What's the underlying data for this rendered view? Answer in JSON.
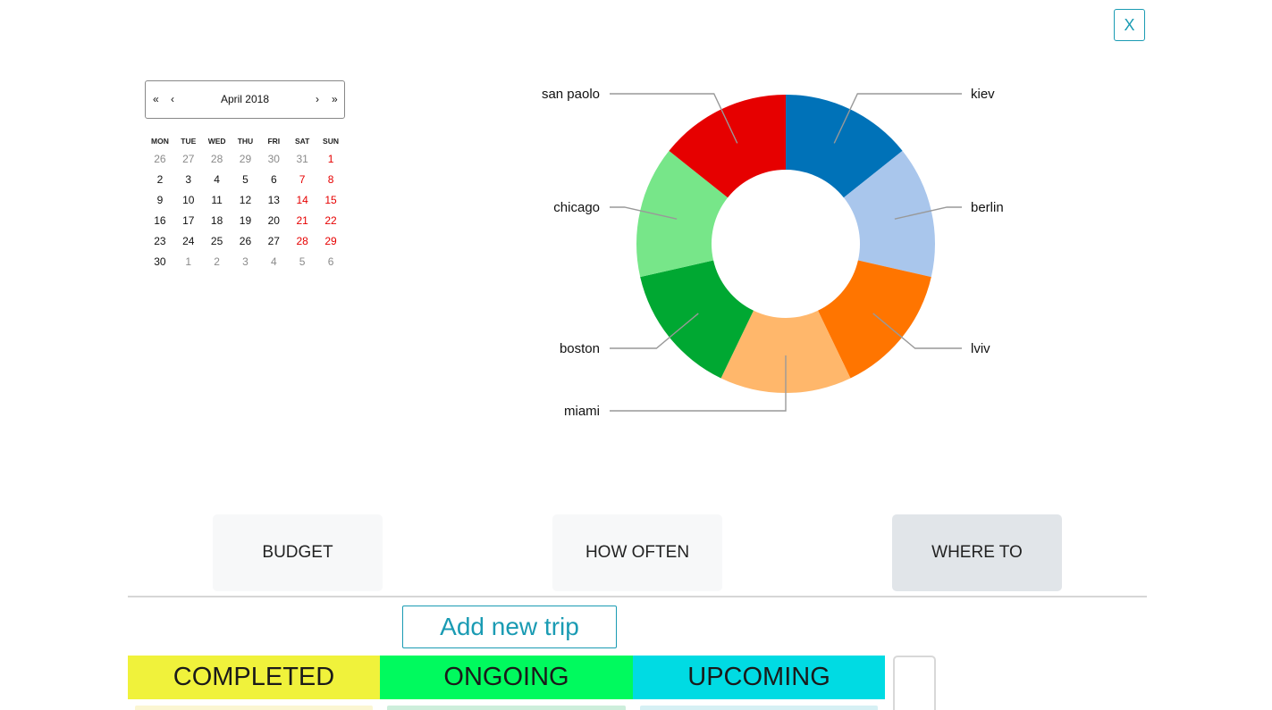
{
  "close_button": {
    "label": "X"
  },
  "calendar": {
    "nav": {
      "first": "«",
      "prev": "‹",
      "month_label": "April 2018",
      "next": "›",
      "last": "»"
    },
    "weekdays": [
      "MON",
      "TUE",
      "WED",
      "THU",
      "FRI",
      "SAT",
      "SUN"
    ],
    "weeks": [
      [
        {
          "d": "26",
          "t": "other"
        },
        {
          "d": "27",
          "t": "other"
        },
        {
          "d": "28",
          "t": "other"
        },
        {
          "d": "29",
          "t": "other"
        },
        {
          "d": "30",
          "t": "other"
        },
        {
          "d": "31",
          "t": "other"
        },
        {
          "d": "1",
          "t": "weekend"
        }
      ],
      [
        {
          "d": "2",
          "t": "normal"
        },
        {
          "d": "3",
          "t": "normal"
        },
        {
          "d": "4",
          "t": "normal"
        },
        {
          "d": "5",
          "t": "normal"
        },
        {
          "d": "6",
          "t": "normal"
        },
        {
          "d": "7",
          "t": "weekend"
        },
        {
          "d": "8",
          "t": "weekend"
        }
      ],
      [
        {
          "d": "9",
          "t": "normal"
        },
        {
          "d": "10",
          "t": "normal"
        },
        {
          "d": "11",
          "t": "normal"
        },
        {
          "d": "12",
          "t": "normal"
        },
        {
          "d": "13",
          "t": "normal"
        },
        {
          "d": "14",
          "t": "weekend"
        },
        {
          "d": "15",
          "t": "weekend"
        }
      ],
      [
        {
          "d": "16",
          "t": "normal"
        },
        {
          "d": "17",
          "t": "normal"
        },
        {
          "d": "18",
          "t": "normal"
        },
        {
          "d": "19",
          "t": "normal"
        },
        {
          "d": "20",
          "t": "normal"
        },
        {
          "d": "21",
          "t": "weekend"
        },
        {
          "d": "22",
          "t": "weekend"
        }
      ],
      [
        {
          "d": "23",
          "t": "normal"
        },
        {
          "d": "24",
          "t": "normal"
        },
        {
          "d": "25",
          "t": "normal"
        },
        {
          "d": "26",
          "t": "normal"
        },
        {
          "d": "27",
          "t": "normal"
        },
        {
          "d": "28",
          "t": "weekend"
        },
        {
          "d": "29",
          "t": "weekend"
        }
      ],
      [
        {
          "d": "30",
          "t": "normal"
        },
        {
          "d": "1",
          "t": "other"
        },
        {
          "d": "2",
          "t": "other"
        },
        {
          "d": "3",
          "t": "other"
        },
        {
          "d": "4",
          "t": "other"
        },
        {
          "d": "5",
          "t": "other"
        },
        {
          "d": "6",
          "t": "other"
        }
      ]
    ]
  },
  "chart_data": {
    "type": "pie",
    "variant": "donut",
    "slices": [
      {
        "label": "kiev",
        "value": 1,
        "color": "#0072b8"
      },
      {
        "label": "berlin",
        "value": 1,
        "color": "#a9c6ec"
      },
      {
        "label": "lviv",
        "value": 1,
        "color": "#ff7500"
      },
      {
        "label": "miami",
        "value": 1,
        "color": "#ffb76b"
      },
      {
        "label": "boston",
        "value": 1,
        "color": "#00a832"
      },
      {
        "label": "chicago",
        "value": 1,
        "color": "#77e689"
      },
      {
        "label": "san paolo",
        "value": 1,
        "color": "#e60000"
      }
    ],
    "label_sides": [
      "right",
      "right",
      "right",
      "left",
      "left",
      "left",
      "left"
    ]
  },
  "tabs": [
    {
      "label": "BUDGET",
      "active": false
    },
    {
      "label": "HOW OFTEN",
      "active": false
    },
    {
      "label": "WHERE TO",
      "active": true
    }
  ],
  "add_trip": {
    "label": "Add new trip"
  },
  "columns": [
    {
      "label": "COMPLETED",
      "color": "#f0f23b",
      "stub_color": "#fbf6d2"
    },
    {
      "label": "ONGOING",
      "color": "#00fa5e",
      "stub_color": "#cdeedb"
    },
    {
      "label": "UPCOMING",
      "color": "#00dbe3",
      "stub_color": "#d6f0f4"
    }
  ],
  "colors": {
    "accent": "#1a9bb3"
  }
}
